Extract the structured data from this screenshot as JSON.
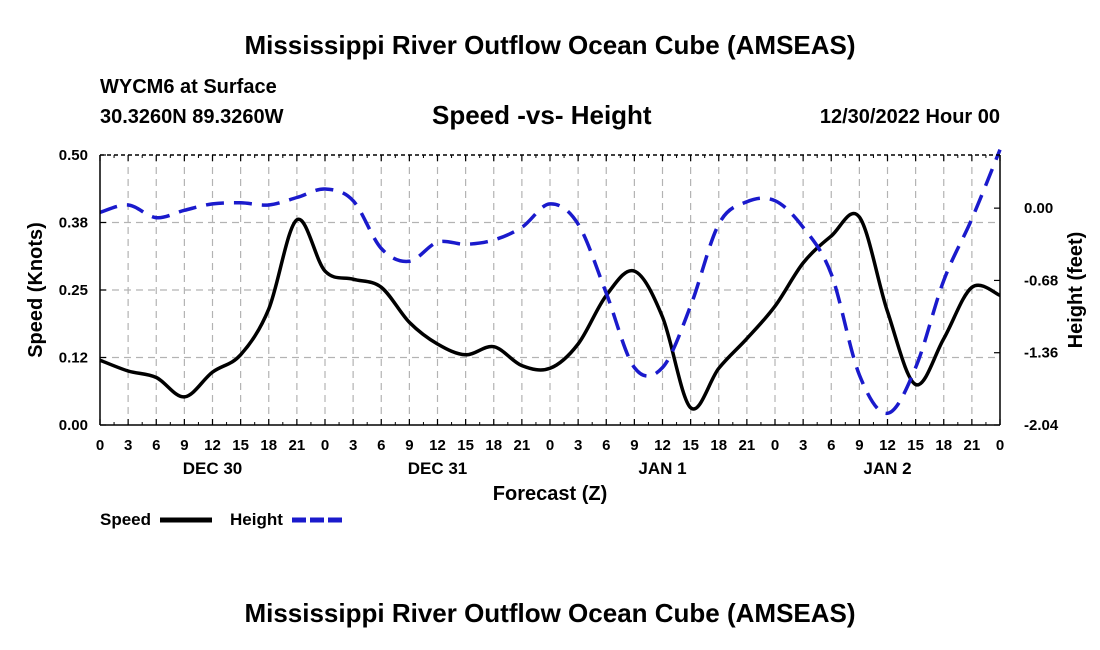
{
  "title": "Mississippi River Outflow Ocean Cube (AMSEAS)",
  "bottom_title": "Mississippi River Outflow Ocean Cube (AMSEAS)",
  "station": "WYCM6 at Surface",
  "coords": "30.3260N  89.3260W",
  "subtitle": "Speed -vs- Height",
  "datetime": "12/30/2022 Hour 00",
  "colors": {
    "speed": "#000000",
    "height": "#1a1acc",
    "grid": "#b3b3b3"
  },
  "chart_data": {
    "type": "line",
    "title": "Speed -vs- Height",
    "xlabel": "Forecast (Z)",
    "ylabel": "Speed (Knots)",
    "y2label": "Height (feet)",
    "x_range": [
      0,
      96
    ],
    "ylim": [
      0,
      0.5
    ],
    "y2lim": [
      -2.04,
      0.5
    ],
    "x_ticks": [
      {
        "x": 0,
        "label": "0"
      },
      {
        "x": 3,
        "label": "3"
      },
      {
        "x": 6,
        "label": "6"
      },
      {
        "x": 9,
        "label": "9"
      },
      {
        "x": 12,
        "label": "12"
      },
      {
        "x": 15,
        "label": "15"
      },
      {
        "x": 18,
        "label": "18"
      },
      {
        "x": 21,
        "label": "21"
      },
      {
        "x": 24,
        "label": "0"
      },
      {
        "x": 27,
        "label": "3"
      },
      {
        "x": 30,
        "label": "6"
      },
      {
        "x": 33,
        "label": "9"
      },
      {
        "x": 36,
        "label": "12"
      },
      {
        "x": 39,
        "label": "15"
      },
      {
        "x": 42,
        "label": "18"
      },
      {
        "x": 45,
        "label": "21"
      },
      {
        "x": 48,
        "label": "0"
      },
      {
        "x": 51,
        "label": "3"
      },
      {
        "x": 54,
        "label": "6"
      },
      {
        "x": 57,
        "label": "9"
      },
      {
        "x": 60,
        "label": "12"
      },
      {
        "x": 63,
        "label": "15"
      },
      {
        "x": 66,
        "label": "18"
      },
      {
        "x": 69,
        "label": "21"
      },
      {
        "x": 72,
        "label": "0"
      },
      {
        "x": 75,
        "label": "3"
      },
      {
        "x": 78,
        "label": "6"
      },
      {
        "x": 81,
        "label": "9"
      },
      {
        "x": 84,
        "label": "12"
      },
      {
        "x": 87,
        "label": "15"
      },
      {
        "x": 90,
        "label": "18"
      },
      {
        "x": 93,
        "label": "21"
      },
      {
        "x": 96,
        "label": "0"
      }
    ],
    "day_labels": [
      {
        "x": 12,
        "label": "DEC 30"
      },
      {
        "x": 36,
        "label": "DEC 31"
      },
      {
        "x": 60,
        "label": "JAN 1"
      },
      {
        "x": 84,
        "label": "JAN 2"
      }
    ],
    "y_ticks": [
      {
        "value": 0.0,
        "label": "0.00"
      },
      {
        "value": 0.125,
        "label": "0.12"
      },
      {
        "value": 0.25,
        "label": "0.25"
      },
      {
        "value": 0.375,
        "label": "0.38"
      },
      {
        "value": 0.5,
        "label": "0.50"
      }
    ],
    "y2_ticks": [
      {
        "value": 0.0,
        "label": "0.00"
      },
      {
        "value": -0.68,
        "label": "-0.68"
      },
      {
        "value": -1.36,
        "label": "-1.36"
      },
      {
        "value": -2.04,
        "label": "-2.04"
      }
    ],
    "series": [
      {
        "name": "Speed",
        "axis": "left",
        "style": "solid",
        "x": [
          0,
          3,
          6,
          9,
          12,
          15,
          18,
          21,
          24,
          27,
          30,
          33,
          36,
          39,
          42,
          45,
          48,
          51,
          54,
          57,
          60,
          63,
          66,
          69,
          72,
          75,
          78,
          81,
          84,
          87,
          90,
          93,
          96
        ],
        "values": [
          0.12,
          0.1,
          0.088,
          0.052,
          0.098,
          0.13,
          0.215,
          0.38,
          0.285,
          0.27,
          0.255,
          0.19,
          0.15,
          0.13,
          0.145,
          0.11,
          0.105,
          0.15,
          0.24,
          0.285,
          0.2,
          0.032,
          0.105,
          0.16,
          0.22,
          0.3,
          0.35,
          0.385,
          0.21,
          0.075,
          0.16,
          0.255,
          0.24
        ]
      },
      {
        "name": "Height",
        "axis": "right",
        "style": "dashed",
        "x": [
          0,
          3,
          6,
          9,
          12,
          15,
          18,
          21,
          24,
          27,
          30,
          33,
          36,
          39,
          42,
          45,
          48,
          51,
          54,
          57,
          60,
          63,
          66,
          69,
          72,
          75,
          78,
          81,
          84,
          87,
          90,
          93,
          96
        ],
        "values": [
          -0.04,
          0.03,
          -0.09,
          -0.02,
          0.04,
          0.05,
          0.03,
          0.1,
          0.18,
          0.07,
          -0.38,
          -0.5,
          -0.32,
          -0.34,
          -0.3,
          -0.18,
          0.04,
          -0.15,
          -0.8,
          -1.5,
          -1.5,
          -0.92,
          -0.15,
          0.06,
          0.07,
          -0.18,
          -0.62,
          -1.57,
          -1.93,
          -1.5,
          -0.68,
          -0.1,
          0.55
        ]
      }
    ],
    "legend": [
      {
        "label": "Speed",
        "style": "solid"
      },
      {
        "label": "Height",
        "style": "dashed"
      }
    ]
  }
}
